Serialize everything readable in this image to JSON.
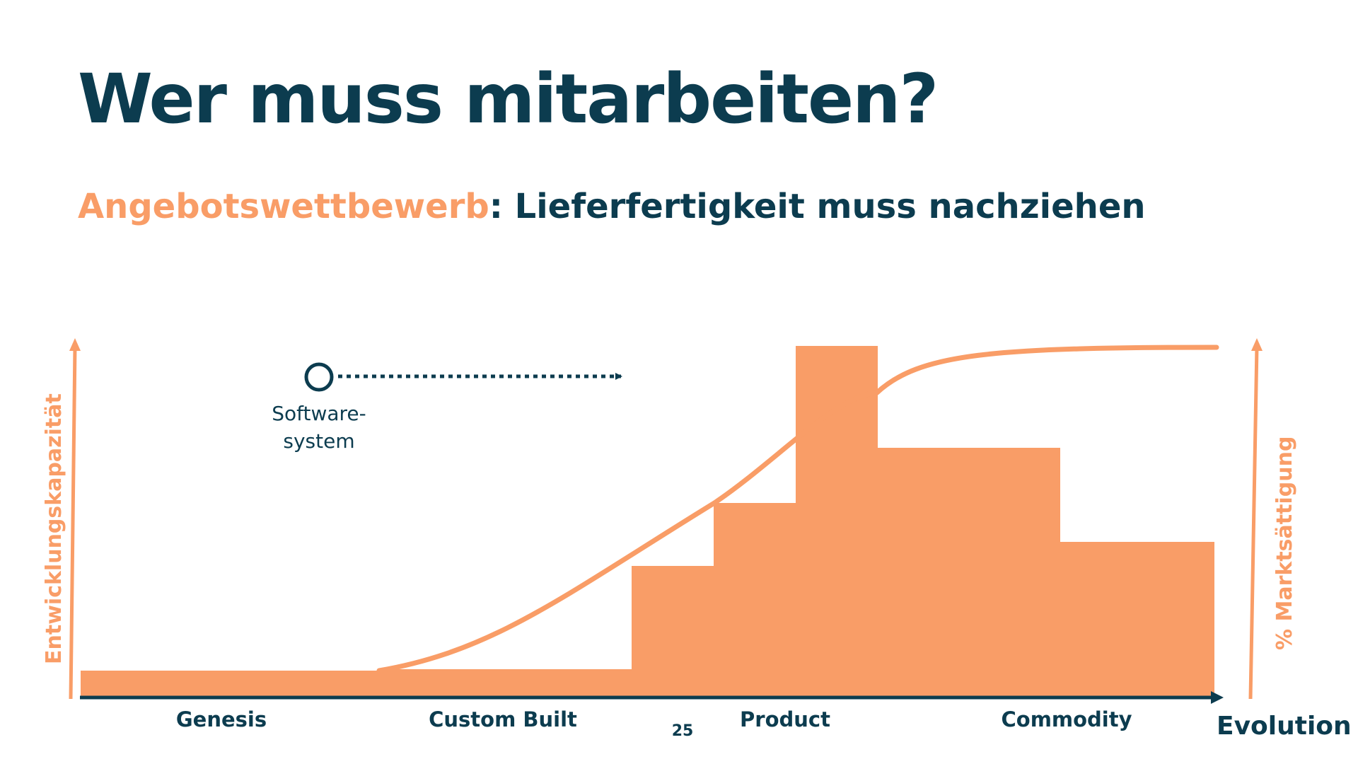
{
  "slide": {
    "title": "Wer muss mitarbeiten?",
    "subtitle_accent": "Angebotswettbewerb",
    "subtitle_rest": ": Lieferfertigkeit muss nachziehen",
    "page_number": "25"
  },
  "colors": {
    "navy": "#0c3c4f",
    "orange": "#f99d67"
  },
  "diagram": {
    "y_axis_left_label": "Entwicklungskapazität",
    "y_axis_right_label": "% Marktsättigung",
    "x_axis_label": "Evolution",
    "x_categories": [
      "Genesis",
      "Custom Built",
      "Product",
      "Commodity"
    ],
    "marker_label_line1": "Software-",
    "marker_label_line2": "system"
  }
}
